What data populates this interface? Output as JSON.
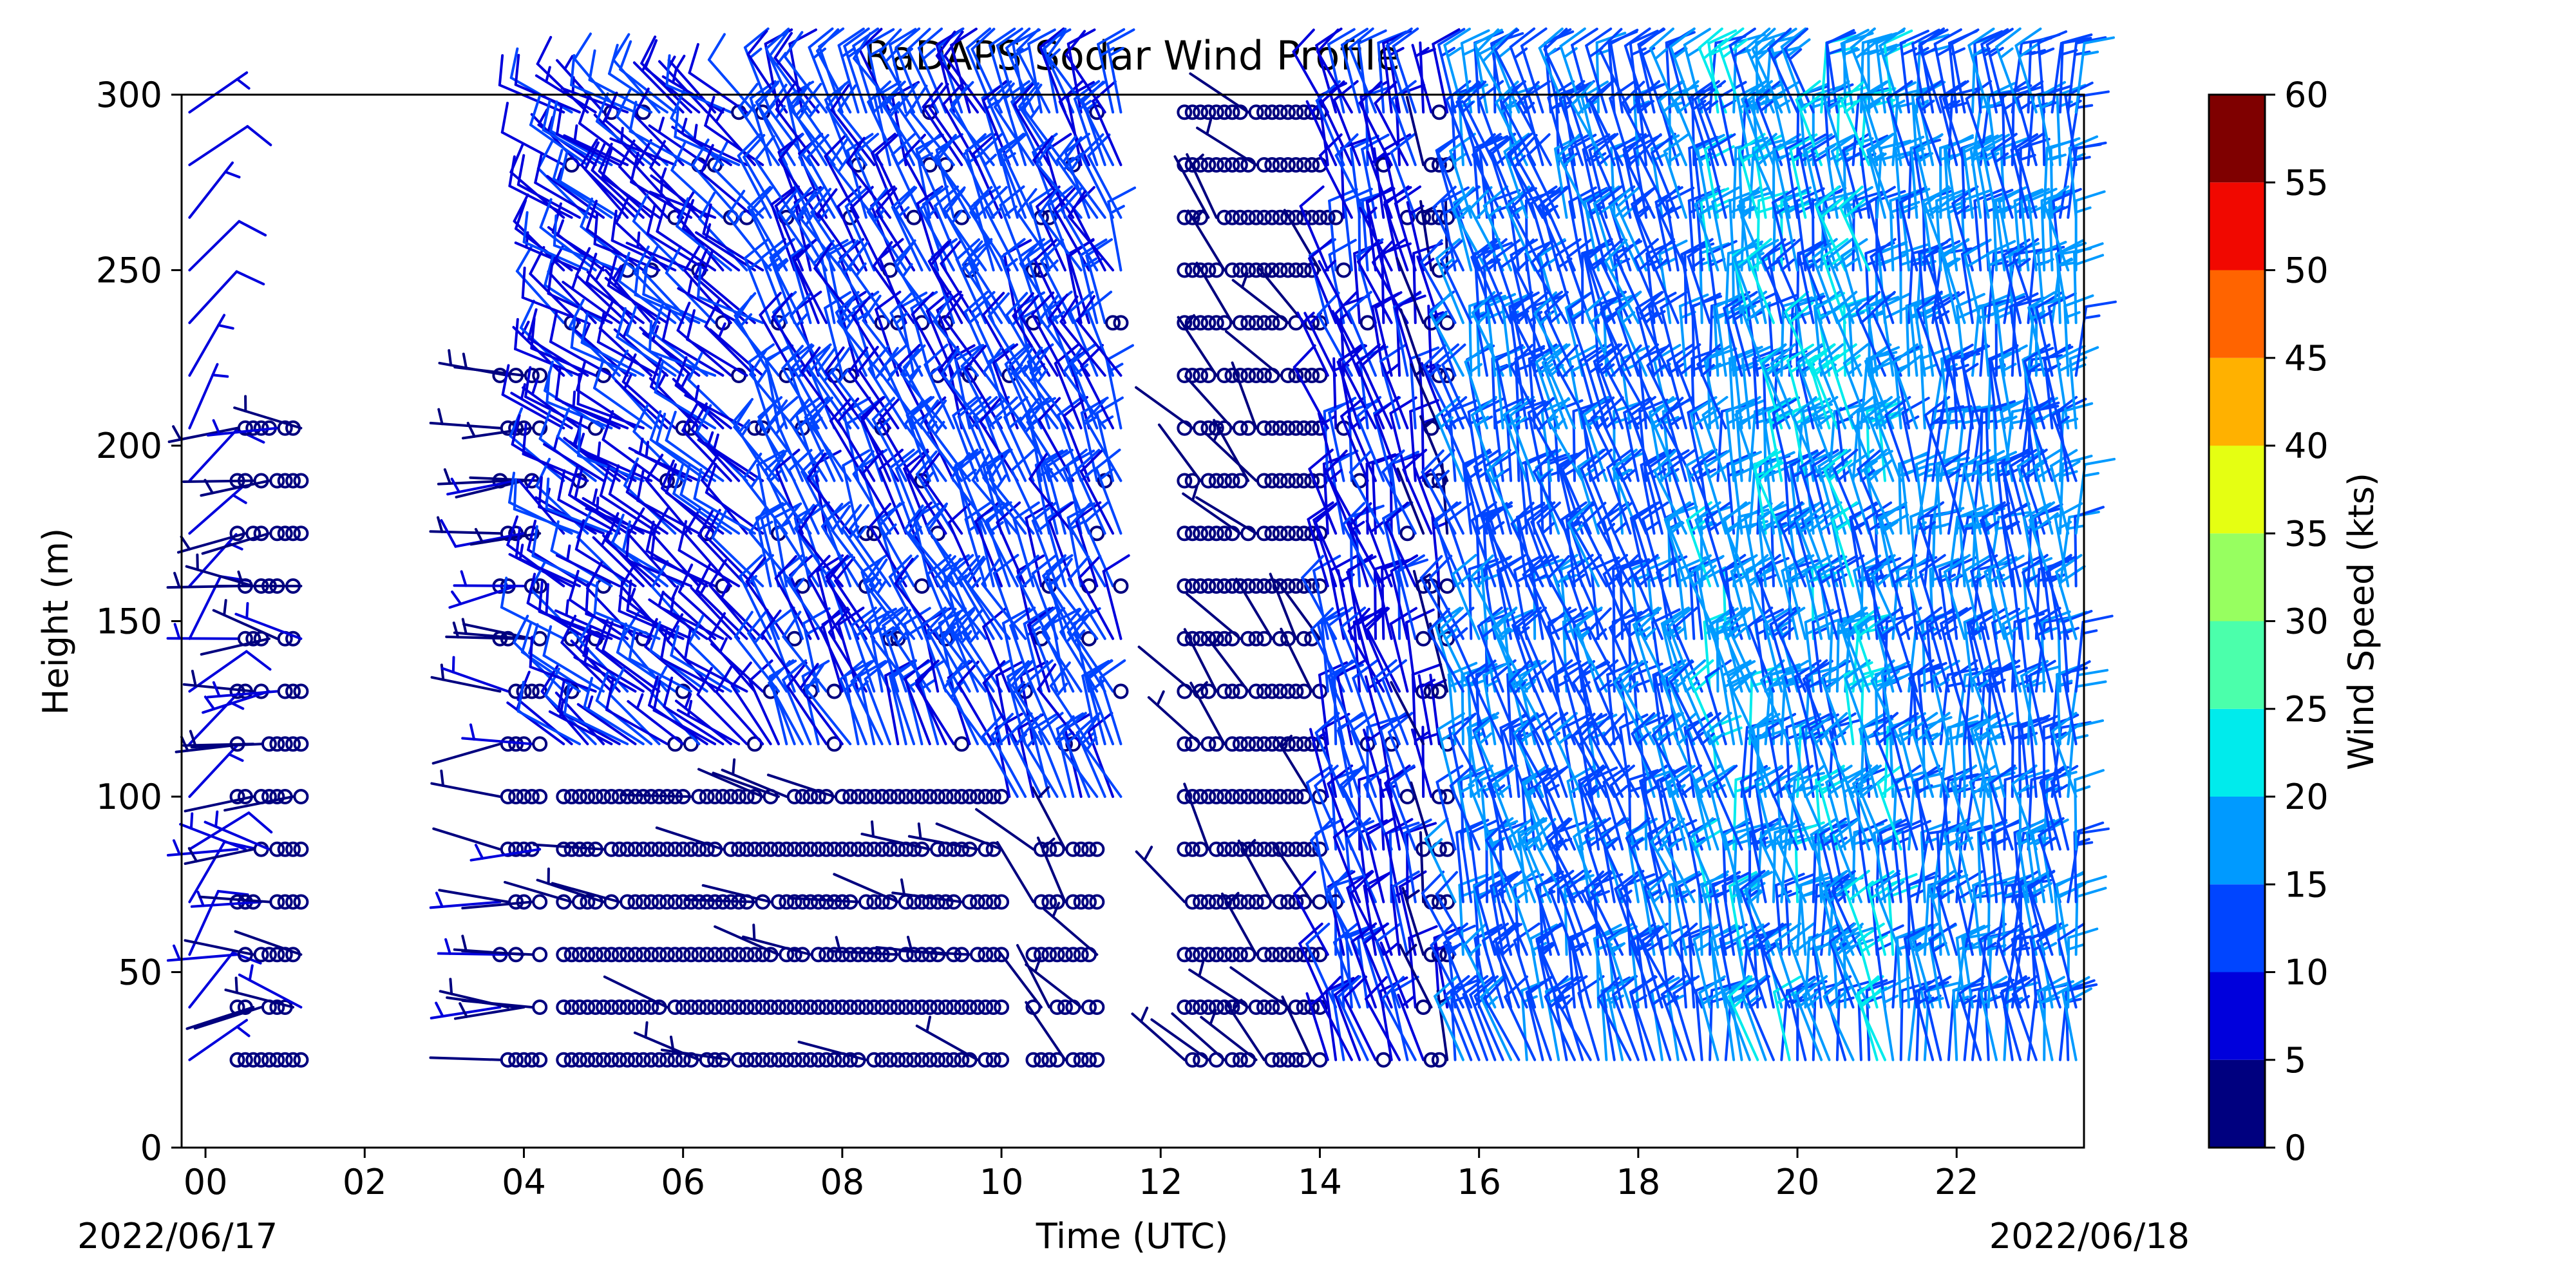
{
  "chart_data": {
    "type": "wind-barb",
    "title": "RaDAPS Sodar Wind Profile",
    "xlabel": "Time (UTC)",
    "ylabel": "Height (m)",
    "date_start_label": "2022/06/17",
    "date_end_label": "2022/06/18",
    "xlim_hours": [
      -0.3,
      23.6
    ],
    "ylim": [
      0,
      300
    ],
    "x_ticks": [
      {
        "hour": 0,
        "label": "00"
      },
      {
        "hour": 2,
        "label": "02"
      },
      {
        "hour": 4,
        "label": "04"
      },
      {
        "hour": 6,
        "label": "06"
      },
      {
        "hour": 8,
        "label": "08"
      },
      {
        "hour": 10,
        "label": "10"
      },
      {
        "hour": 12,
        "label": "12"
      },
      {
        "hour": 14,
        "label": "14"
      },
      {
        "hour": 16,
        "label": "16"
      },
      {
        "hour": 18,
        "label": "18"
      },
      {
        "hour": 20,
        "label": "20"
      },
      {
        "hour": 22,
        "label": "22"
      }
    ],
    "y_ticks": [
      {
        "value": 0,
        "label": "0"
      },
      {
        "value": 50,
        "label": "50"
      },
      {
        "value": 100,
        "label": "100"
      },
      {
        "value": 150,
        "label": "150"
      },
      {
        "value": 200,
        "label": "200"
      },
      {
        "value": 250,
        "label": "250"
      },
      {
        "value": 300,
        "label": "300"
      }
    ],
    "height_levels_m": [
      25,
      40,
      55,
      70,
      85,
      100,
      115,
      130,
      145,
      160,
      175,
      190,
      205,
      220,
      235,
      250,
      265,
      280,
      295
    ],
    "colorbar": {
      "label": "Wind Speed (kts)",
      "range": [
        0,
        60
      ],
      "bins": [
        {
          "from": 0,
          "to": 5,
          "color": "#00007f"
        },
        {
          "from": 5,
          "to": 10,
          "color": "#0000dc"
        },
        {
          "from": 10,
          "to": 15,
          "color": "#0045ff"
        },
        {
          "from": 15,
          "to": 20,
          "color": "#009aff"
        },
        {
          "from": 20,
          "to": 25,
          "color": "#00ebec"
        },
        {
          "from": 25,
          "to": 30,
          "color": "#4bffab"
        },
        {
          "from": 30,
          "to": 35,
          "color": "#97ff60"
        },
        {
          "from": 35,
          "to": 40,
          "color": "#e5ff12"
        },
        {
          "from": 40,
          "to": 45,
          "color": "#ffb100"
        },
        {
          "from": 45,
          "to": 50,
          "color": "#ff6400"
        },
        {
          "from": 50,
          "to": 55,
          "color": "#f10800"
        },
        {
          "from": 55,
          "to": 60,
          "color": "#7f0000"
        }
      ],
      "ticks": [
        {
          "value": 0,
          "label": "0"
        },
        {
          "value": 5,
          "label": "5"
        },
        {
          "value": 10,
          "label": "10"
        },
        {
          "value": 15,
          "label": "15"
        },
        {
          "value": 20,
          "label": "20"
        },
        {
          "value": 25,
          "label": "25"
        },
        {
          "value": 30,
          "label": "30"
        },
        {
          "value": 35,
          "label": "35"
        },
        {
          "value": 40,
          "label": "40"
        },
        {
          "value": 45,
          "label": "45"
        },
        {
          "value": 50,
          "label": "50"
        },
        {
          "value": 55,
          "label": "55"
        },
        {
          "value": 60,
          "label": "60"
        }
      ]
    },
    "regimes": [
      {
        "from_hour": -0.3,
        "to_hour": -0.1,
        "min_height_m": 10,
        "max_height_m": 300,
        "speed_kts": [
          6,
          10
        ],
        "dir_deg": [
          20,
          60
        ],
        "calm_fraction": 0.0
      },
      {
        "from_hour": 0.4,
        "to_hour": 1.2,
        "min_height_m": 25,
        "max_height_m": 210,
        "speed_kts": [
          0,
          6
        ],
        "dir_deg": [
          250,
          300
        ],
        "calm_fraction": 0.7
      },
      {
        "from_hour": 3.7,
        "to_hour": 4.3,
        "min_height_m": 25,
        "max_height_m": 230,
        "speed_kts": [
          0,
          8
        ],
        "dir_deg": [
          250,
          290
        ],
        "calm_fraction": 0.6
      },
      {
        "from_hour": 4.5,
        "to_hour": 10.0,
        "min_height_m": 25,
        "max_height_m": 100,
        "speed_kts": [
          0,
          4
        ],
        "dir_deg": [
          270,
          300
        ],
        "calm_fraction": 0.92
      },
      {
        "from_hour": 4.5,
        "to_hour": 7.0,
        "min_height_m": 100,
        "max_height_m": 300,
        "speed_kts": [
          6,
          12
        ],
        "dir_deg": [
          290,
          320
        ],
        "calm_fraction": 0.1
      },
      {
        "from_hour": 7.0,
        "to_hour": 11.5,
        "min_height_m": 100,
        "max_height_m": 300,
        "speed_kts": [
          8,
          15
        ],
        "dir_deg": [
          320,
          350
        ],
        "calm_fraction": 0.1
      },
      {
        "from_hour": 10.3,
        "to_hour": 11.2,
        "min_height_m": 25,
        "max_height_m": 160,
        "speed_kts": [
          0,
          4
        ],
        "dir_deg": [
          300,
          340
        ],
        "calm_fraction": 0.85
      },
      {
        "from_hour": 12.2,
        "to_hour": 14.0,
        "min_height_m": 25,
        "max_height_m": 300,
        "speed_kts": [
          0,
          5
        ],
        "dir_deg": [
          300,
          340
        ],
        "calm_fraction": 0.88
      },
      {
        "from_hour": 14.0,
        "to_hour": 15.2,
        "min_height_m": 25,
        "max_height_m": 300,
        "speed_kts": [
          7,
          12
        ],
        "dir_deg": [
          330,
          360
        ],
        "calm_fraction": 0.05
      },
      {
        "from_hour": 15.2,
        "to_hour": 15.6,
        "min_height_m": 25,
        "max_height_m": 300,
        "speed_kts": [
          0,
          8
        ],
        "dir_deg": [
          330,
          360
        ],
        "calm_fraction": 0.5
      },
      {
        "from_hour": 15.6,
        "to_hour": 18.8,
        "min_height_m": 25,
        "max_height_m": 300,
        "speed_kts": [
          10,
          17
        ],
        "dir_deg": [
          330,
          360
        ],
        "calm_fraction": 0.0
      },
      {
        "from_hour": 18.8,
        "to_hour": 21.4,
        "min_height_m": 25,
        "max_height_m": 300,
        "speed_kts": [
          12,
          21
        ],
        "dir_deg": [
          335,
          365
        ],
        "calm_fraction": 0.0
      },
      {
        "from_hour": 21.4,
        "to_hour": 23.6,
        "min_height_m": 25,
        "max_height_m": 300,
        "speed_kts": [
          11,
          18
        ],
        "dir_deg": [
          340,
          370
        ],
        "calm_fraction": 0.0
      }
    ]
  }
}
